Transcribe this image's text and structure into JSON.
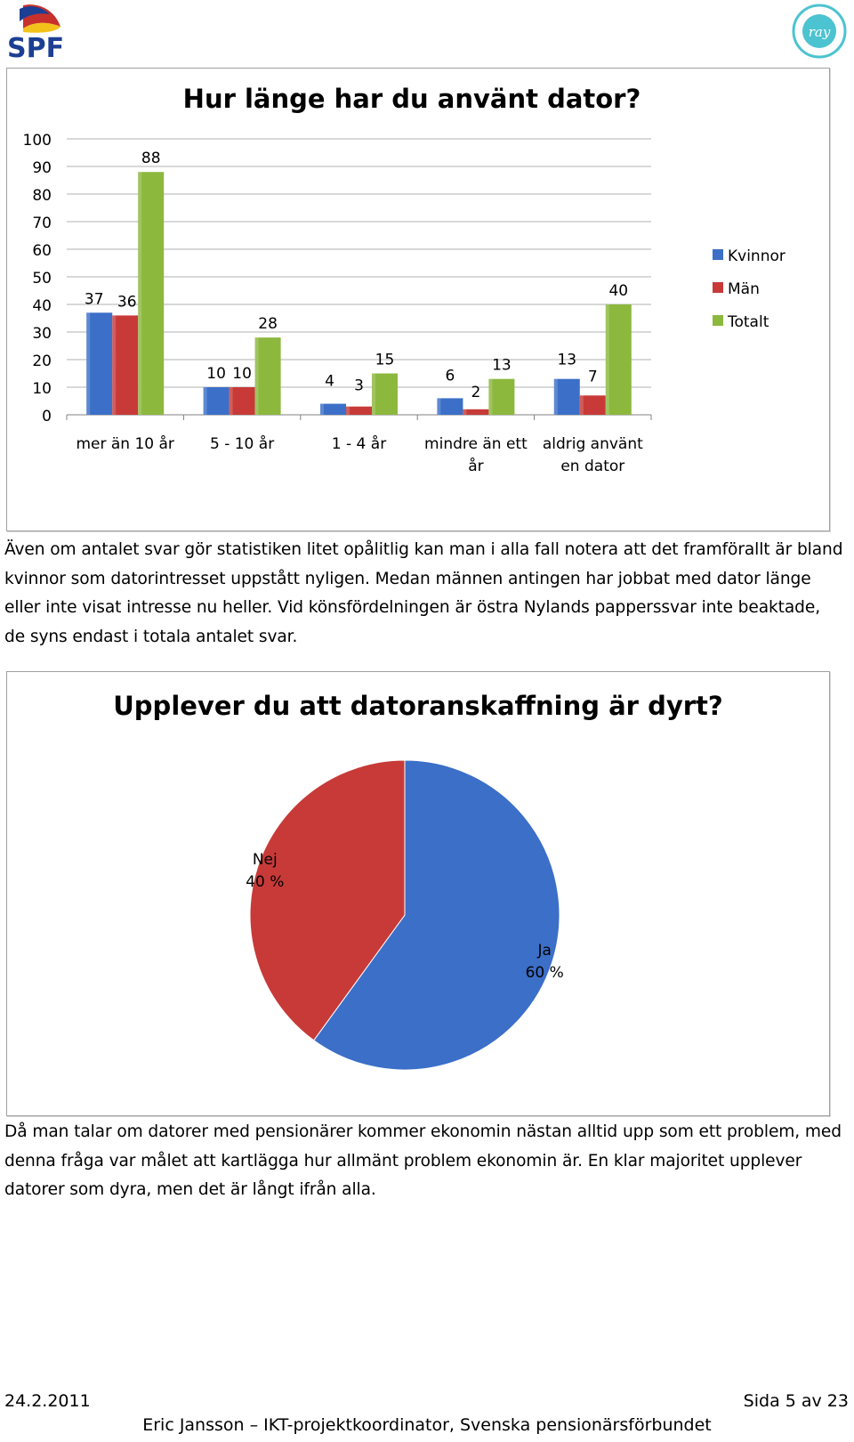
{
  "header": {
    "left_logo": {
      "text": "SPF",
      "icon": "spf-sail-logo"
    },
    "right_logo": {
      "icon": "ray-seal-logo",
      "text": "ray"
    }
  },
  "bar_chart": {
    "chart_data": {
      "type": "bar",
      "title": "Hur länge har du använt dator?",
      "categories": [
        "mer än 10 år",
        "5 - 10 år",
        "1 - 4 år",
        "mindre än ett år",
        "aldrig använt en dator"
      ],
      "category_lines": [
        [
          "mer än 10 år"
        ],
        [
          "5 - 10 år"
        ],
        [
          "1 - 4 år"
        ],
        [
          "mindre än ett",
          "år"
        ],
        [
          "aldrig använt",
          "en dator"
        ]
      ],
      "series": [
        {
          "name": "Kvinnor",
          "values": [
            37,
            10,
            4,
            6,
            13
          ],
          "color": "#3b6fc8"
        },
        {
          "name": "Män",
          "values": [
            36,
            10,
            3,
            2,
            7
          ],
          "color": "#c73a38"
        },
        {
          "name": "Totalt",
          "values": [
            88,
            28,
            15,
            13,
            40
          ],
          "color": "#8cb83e"
        }
      ],
      "yticks": [
        "0",
        "10",
        "20",
        "30",
        "40",
        "50",
        "60",
        "70",
        "80",
        "90",
        "100"
      ],
      "ylim": [
        0,
        100
      ],
      "grid": true,
      "legend": "right"
    }
  },
  "paragraph1": "Även om antalet svar gör statistiken litet opålitlig kan man i alla fall notera att det framförallt är bland kvinnor som datorintresset uppstått nyligen. Medan männen antingen har jobbat med dator länge eller inte visat intresse nu heller. Vid könsfördelningen är östra Nylands papperssvar inte beaktade, de syns endast i totala antalet svar.",
  "pie_chart": {
    "chart_data": {
      "type": "pie",
      "title": "Upplever du att datoranskaffning är dyrt?",
      "slices": [
        {
          "name": "Ja",
          "value": 60,
          "label": "60 %",
          "color": "#3b6fc8"
        },
        {
          "name": "Nej",
          "value": 40,
          "label": "40 %",
          "color": "#c73a38"
        }
      ]
    }
  },
  "paragraph2": "Då man talar om datorer med pensionärer kommer ekonomin nästan alltid upp som ett problem, med denna fråga var målet att kartlägga hur allmänt problem ekonomin är. En klar majoritet upplever datorer som dyra, men det är långt ifrån alla.",
  "footer": {
    "date": "24.2.2011",
    "page": "Sida 5 av 23",
    "author": "Eric Jansson – IKT-projektkoordinator, Svenska pensionärsförbundet"
  }
}
